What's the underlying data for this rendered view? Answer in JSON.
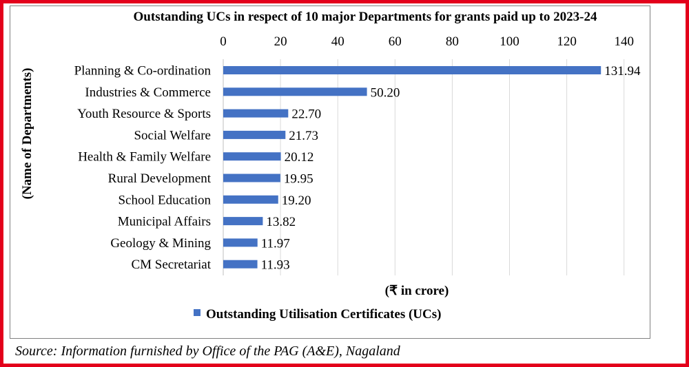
{
  "chart_data": {
    "type": "bar",
    "orientation": "horizontal",
    "title": "Outstanding UCs in respect of 10 major Departments for grants paid up to 2023-24",
    "xlabel": "(₹ in crore)",
    "ylabel": "(Name of Departments)",
    "xlim": [
      0,
      140
    ],
    "xticks": [
      0,
      20,
      40,
      60,
      80,
      100,
      120,
      140
    ],
    "x_axis_position": "top",
    "grid": true,
    "legend_position": "bottom",
    "categories": [
      "Planning & Co-ordination",
      "Industries & Commerce",
      "Youth Resource & Sports",
      "Social Welfare",
      "Health & Family Welfare",
      "Rural Development",
      "School Education",
      "Municipal Affairs",
      "Geology & Mining",
      "CM Secretariat"
    ],
    "series": [
      {
        "name": "Outstanding Utilisation Certificates (UCs)",
        "values": [
          131.94,
          50.2,
          22.7,
          21.73,
          20.12,
          19.95,
          19.2,
          13.82,
          11.97,
          11.93
        ],
        "labels": [
          "131.94",
          "50.20",
          "22.70",
          "21.73",
          "20.12",
          "19.95",
          "19.20",
          "13.82",
          "11.97",
          "11.93"
        ],
        "color": "#4472c4"
      }
    ]
  },
  "source": "Source: Information furnished by Office of the PAG (A&E), Nagaland",
  "colors": {
    "frame": "#e3001b",
    "gridline": "#d9d9d9",
    "bar": "#4472c4"
  }
}
